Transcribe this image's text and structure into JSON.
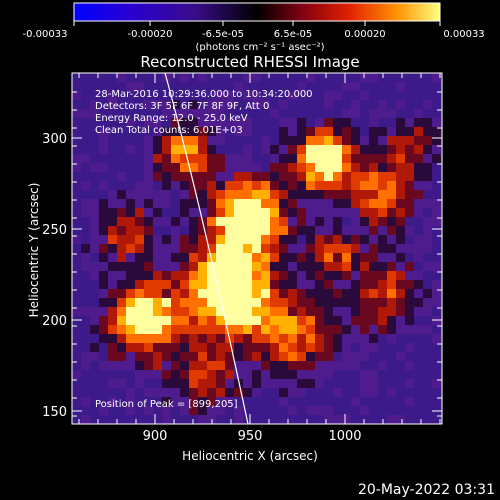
{
  "colorbar": {
    "tick_labels": [
      "-0.00033",
      "-0.00020",
      "-6.5e-05",
      "6.5e-05",
      "0.00020",
      "0.00033"
    ],
    "unit_label": "(photons cm⁻² s⁻¹ asec⁻²)"
  },
  "plot": {
    "title": "Reconstructed RHESSI Image",
    "info_lines": [
      "28-Mar-2016 10:29:36.000 to 10:34:20.000",
      "Detectors: 3F 5F 6F 7F 8F 9F, Att 0",
      "Energy Range: 12.0 - 25.0 keV",
      "Clean    Total counts: 6.01E+03"
    ],
    "peak_label": "Position of Peak = [899,205]",
    "x_axis_label": "Heliocentric X (arcsec)",
    "y_axis_label": "Heliocentric Y (arcsec)",
    "x_ticks": [
      "900",
      "950",
      "1000"
    ],
    "y_ticks": [
      "300",
      "250",
      "200",
      "150"
    ],
    "x_range": [
      860,
      1045
    ],
    "y_range": [
      140,
      330
    ]
  },
  "footer": {
    "date": "20-May-2022 03:31"
  }
}
